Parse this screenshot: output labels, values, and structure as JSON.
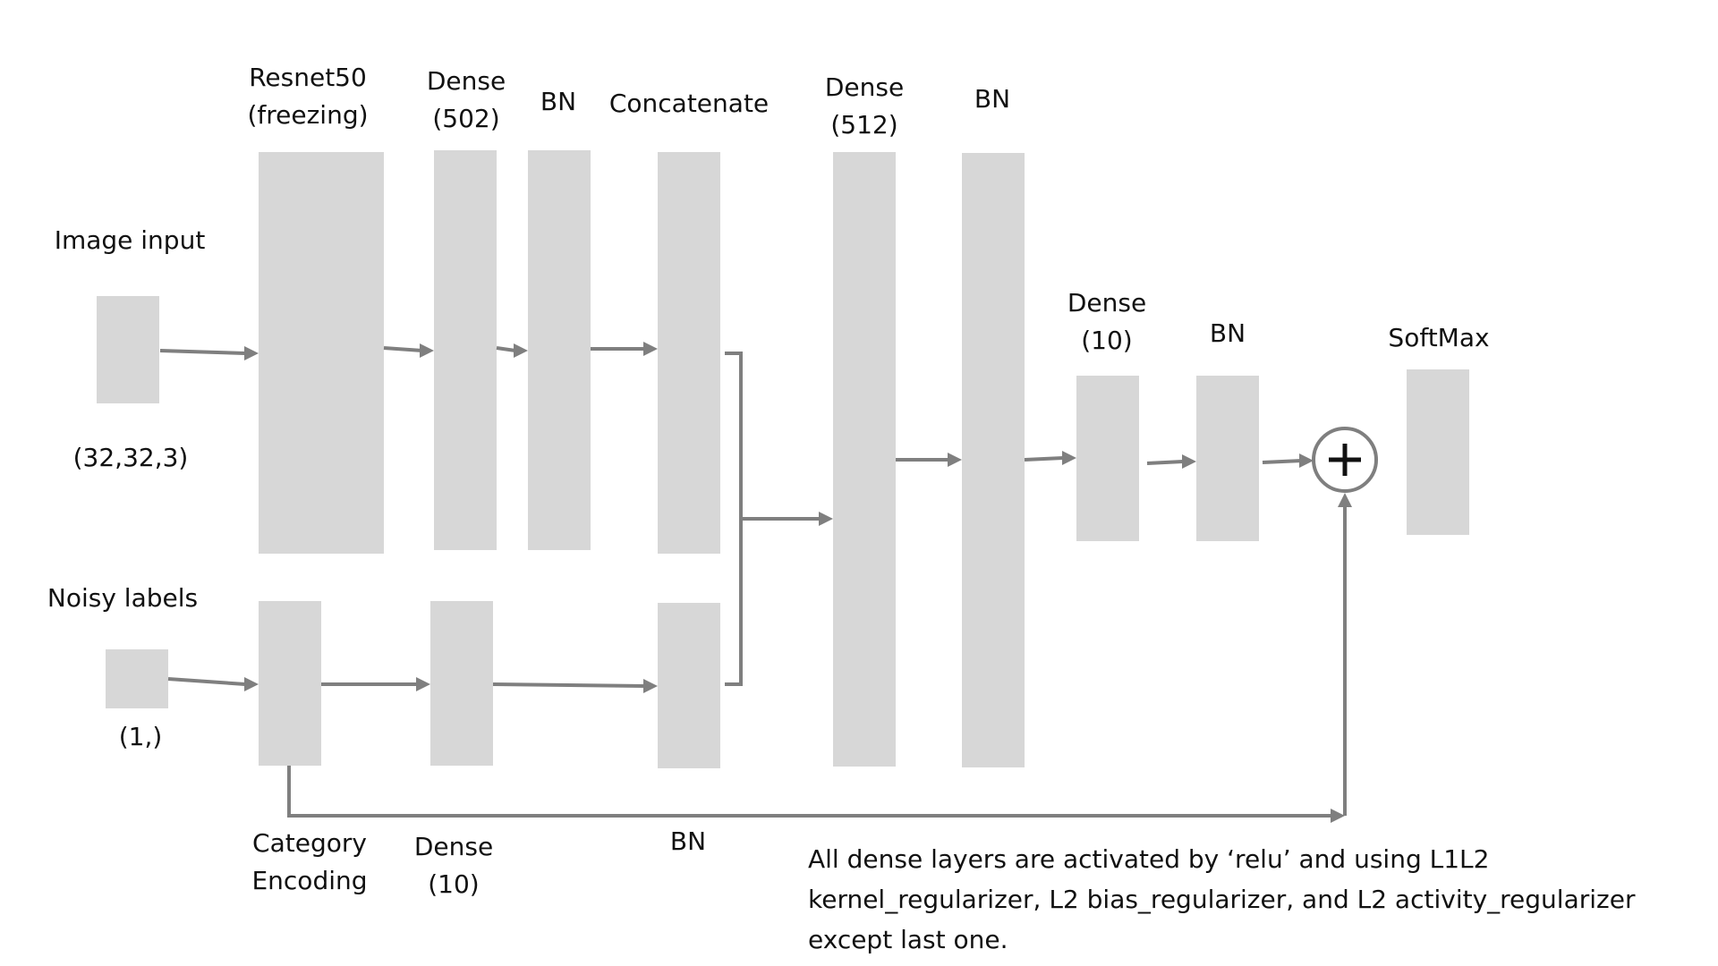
{
  "inputs": {
    "image": {
      "label": "Image input",
      "shape": "(32,32,3)"
    },
    "labels": {
      "label": "Noisy labels",
      "shape": "(1,)"
    }
  },
  "image_branch": {
    "resnet": [
      "Resnet50",
      "(freezing)"
    ],
    "dense": [
      "Dense",
      "(502)"
    ],
    "bn": "BN"
  },
  "label_branch": {
    "category": [
      "Category",
      "Encoding"
    ],
    "dense": [
      "Dense",
      "(10)"
    ],
    "bn": "BN"
  },
  "merge": {
    "concatenate": "Concatenate",
    "dense": [
      "Dense",
      "(512)"
    ],
    "bn": "BN"
  },
  "head": {
    "dense": [
      "Dense",
      "(10)"
    ],
    "bn": "BN",
    "softmax": "SoftMax"
  },
  "note": [
    "All dense layers are activated by ‘relu’ and using L1L2",
    "kernel_regularizer, L2 bias_regularizer, and L2 activity_regularizer",
    "except last one."
  ]
}
